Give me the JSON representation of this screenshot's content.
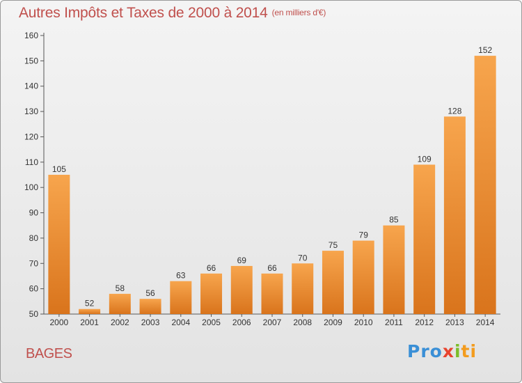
{
  "header": {
    "title": "Autres Impôts et Taxes de 2000 à 2014",
    "subtitle": "(en milliers d'€)"
  },
  "footer": {
    "commune": "BAGES",
    "logo": [
      "Pro",
      "x",
      "i",
      "ti"
    ]
  },
  "colors": {
    "title": "#c0504d",
    "bar_light": "#f7a54d",
    "bar_dark": "#d9741c",
    "background_top": "#f4f4f4",
    "background_bottom": "#e3e3e3"
  },
  "chart_data": {
    "type": "bar",
    "categories": [
      "2000",
      "2001",
      "2002",
      "2003",
      "2004",
      "2005",
      "2006",
      "2007",
      "2008",
      "2009",
      "2010",
      "2011",
      "2012",
      "2013",
      "2014"
    ],
    "values": [
      105,
      52,
      58,
      56,
      63,
      66,
      69,
      66,
      70,
      75,
      79,
      85,
      109,
      128,
      152
    ],
    "ylim": [
      50,
      160
    ],
    "yticks": [
      50,
      60,
      70,
      80,
      90,
      100,
      110,
      120,
      130,
      140,
      150,
      160
    ],
    "xlabel": "",
    "ylabel": "",
    "grid": false,
    "data_labels": true
  }
}
